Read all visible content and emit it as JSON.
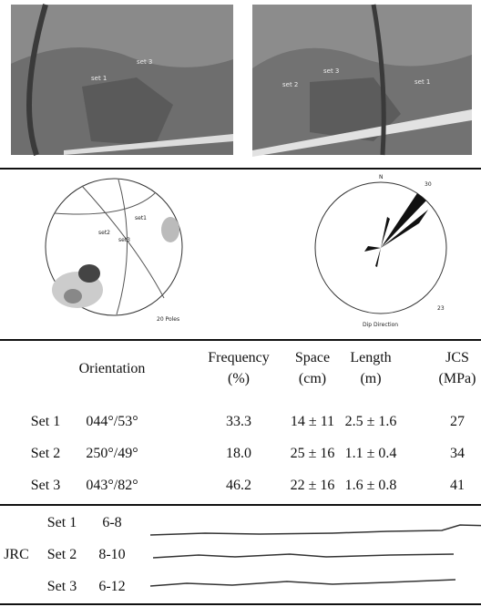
{
  "photos": {
    "left_labels": [
      "set 1",
      "set 3"
    ],
    "right_labels": [
      "set 2",
      "set 3",
      "set 1"
    ]
  },
  "stereonet": {
    "labels": [
      "set1",
      "set2",
      "set3"
    ],
    "count": "20 Poles"
  },
  "rose": {
    "north": "N",
    "max": "30",
    "min": "23",
    "caption": "Dip Direction"
  },
  "table": {
    "header": [
      [],
      [
        "Orientation"
      ],
      [
        "Frequency",
        "(%)"
      ],
      [
        "Space",
        "(cm)"
      ],
      [
        "Length",
        "(m)"
      ],
      [
        "JCS",
        "(MPa)"
      ]
    ],
    "rows": [
      [
        "Set 1",
        "044°/53°",
        "33.3",
        "14 ± 11",
        "2.5 ± 1.6",
        "27"
      ],
      [
        "Set 2",
        "250°/49°",
        "18.0",
        "25 ± 16",
        "1.1 ± 0.4",
        "34"
      ],
      [
        "Set 3",
        "043°/82°",
        "46.2",
        "22 ± 16",
        "1.6 ± 0.8",
        "41"
      ]
    ]
  },
  "jrc": {
    "label": "JRC",
    "rows": [
      [
        "Set 1",
        "6-8"
      ],
      [
        "Set 2",
        "8-10"
      ],
      [
        "Set 3",
        "6-12"
      ]
    ]
  }
}
